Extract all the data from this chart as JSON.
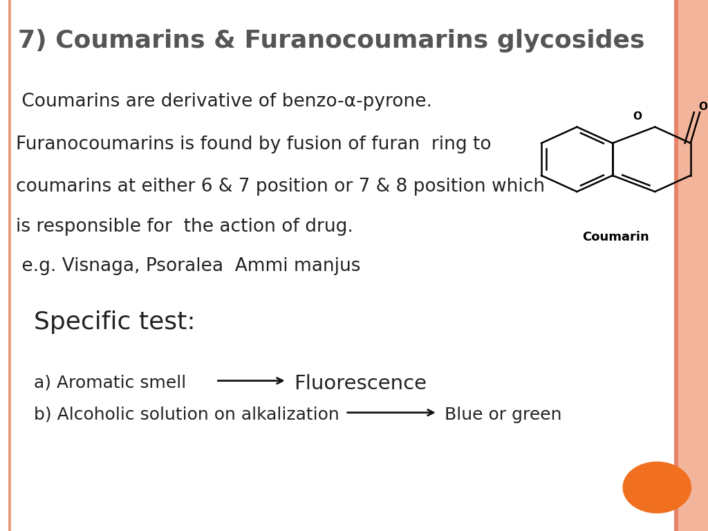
{
  "title": "7) Coumarins & Furanocoumarins glycosides",
  "title_fontsize": 26,
  "title_color": "#555555",
  "background_color": "#ffffff",
  "right_border_color": "#f2b49a",
  "right_border_line_color": "#e8826a",
  "left_border_color": "#e8a080",
  "body_lines": [
    " Coumarins are derivative of benzo-α-pyrone.",
    "Furanocoumarins is found by fusion of furan  ring to",
    "coumarins at either 6 & 7 position or 7 & 8 position which",
    "is responsible for  the action of drug.",
    " e.g. Visnaga, Psoralea  Ammi manjus"
  ],
  "body_fontsize": 19,
  "body_color": "#222222",
  "specific_test_label": "Specific test:",
  "specific_test_fontsize": 26,
  "test_a_label": "a) Aromatic smell",
  "test_a_result": "Fluorescence",
  "test_b_label": "b) Alcoholic solution on alkalization",
  "test_b_result": "Blue or green",
  "test_fontsize": 18,
  "coumarin_label": "Coumarin",
  "coumarin_label_fontsize": 13,
  "orange_circle_color": "#f07020",
  "arrow_color": "#111111"
}
